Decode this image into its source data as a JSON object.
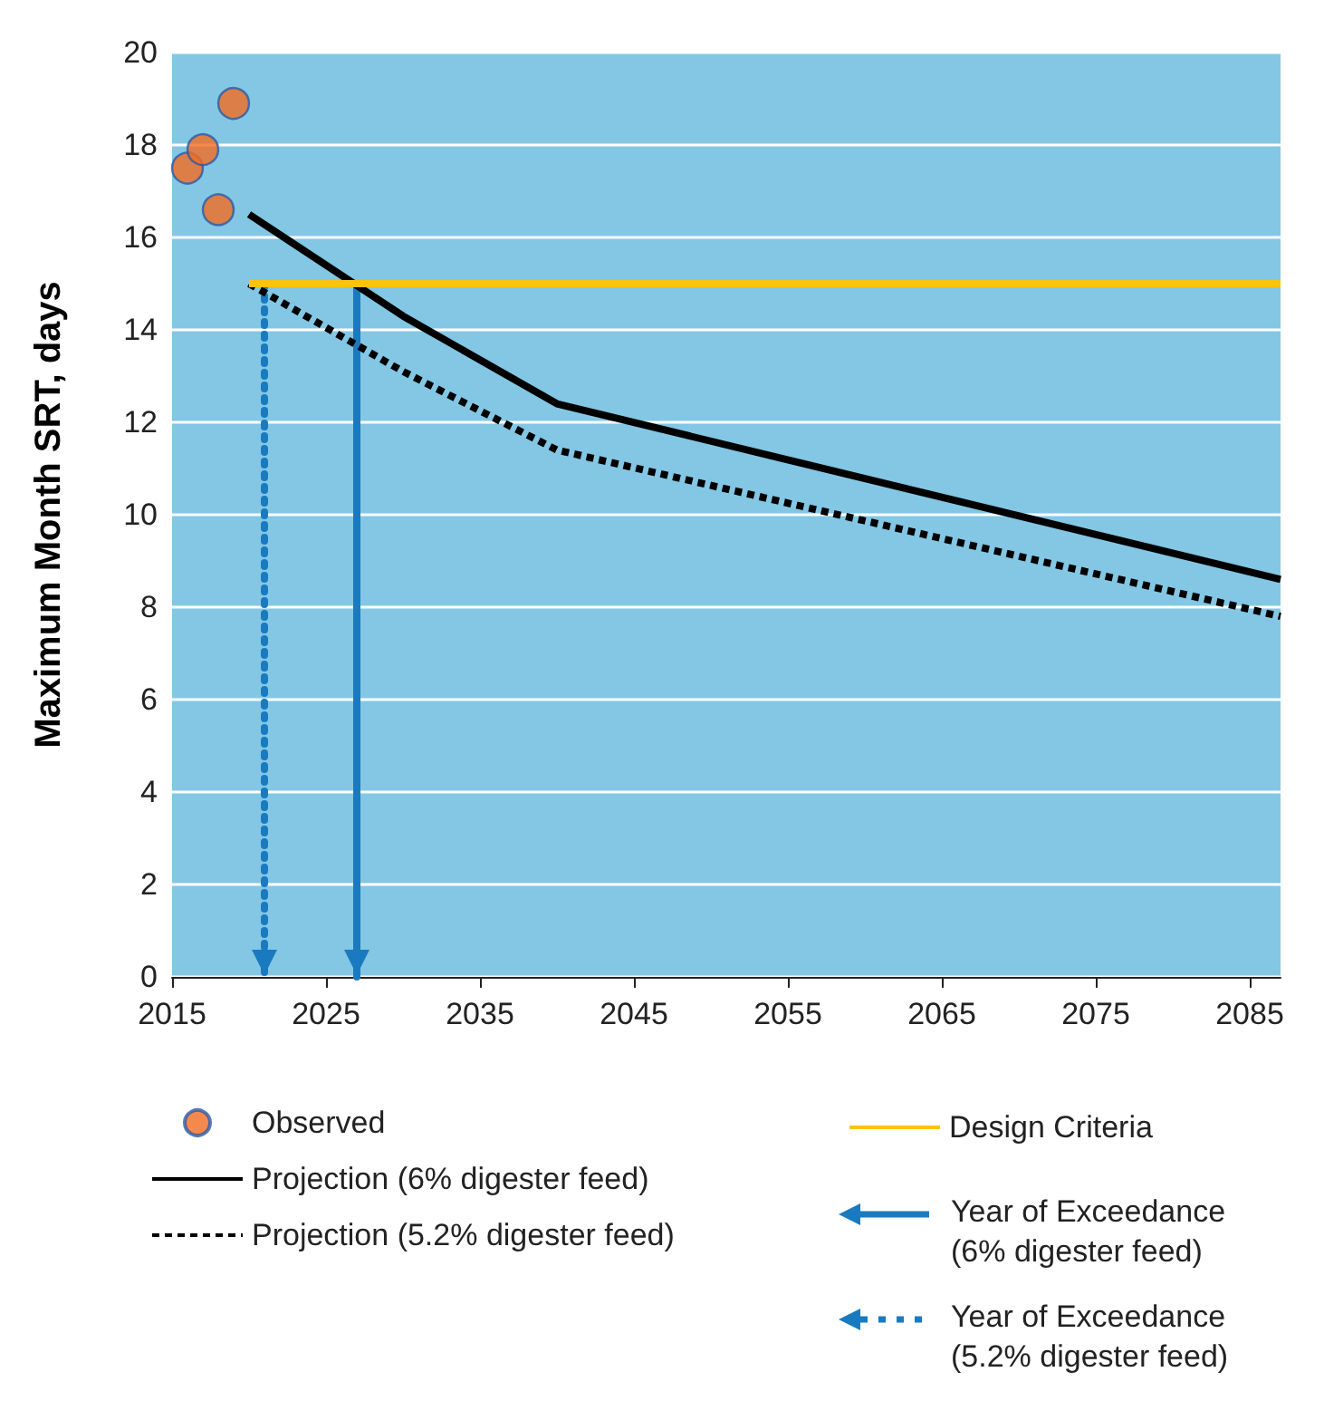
{
  "chart_data": {
    "type": "line",
    "ylabel": "Maximum Month SRT, days",
    "xlim": [
      2015,
      2087
    ],
    "xticks": [
      2015,
      2025,
      2035,
      2045,
      2055,
      2065,
      2075,
      2085
    ],
    "ylim": [
      0,
      20
    ],
    "yticks": [
      0,
      2,
      4,
      6,
      8,
      10,
      12,
      14,
      16,
      18,
      20
    ],
    "grid": "y",
    "legend": "bottom",
    "series": [
      {
        "name": "Observed",
        "type": "scatter",
        "color": "#f26b21",
        "marker": "circle",
        "x": [
          2016,
          2017,
          2018,
          2019
        ],
        "values": [
          17.5,
          17.9,
          16.6,
          18.9
        ]
      },
      {
        "name": "Projection (6% digester feed)",
        "color": "#000000",
        "line_style": "solid",
        "x": [
          2020,
          2030,
          2040,
          2087
        ],
        "values": [
          16.5,
          14.3,
          12.4,
          8.6
        ]
      },
      {
        "name": "Projection (5.2% digester feed)",
        "type": "line",
        "color": "#000000",
        "line_style": "dashed",
        "x": [
          2020,
          2030,
          2040,
          2087
        ],
        "values": [
          15.0,
          13.1,
          11.4,
          7.8
        ]
      },
      {
        "name": "Design Criteria",
        "type": "line",
        "color": "#ffc20e",
        "line_style": "solid",
        "x": [
          2020,
          2087
        ],
        "values": [
          15,
          15
        ]
      }
    ],
    "ref_lines": [
      {
        "axis": "x",
        "value": 2027,
        "label": "Year of Exceedance (6% digester feed)",
        "color": "#1a7abf",
        "line_style": "solid"
      },
      {
        "axis": "x",
        "value": 2021,
        "label": "Year of Exceedance (5.2% digester feed)",
        "color": "#1a7abf",
        "line_style": "dotted"
      }
    ]
  }
}
